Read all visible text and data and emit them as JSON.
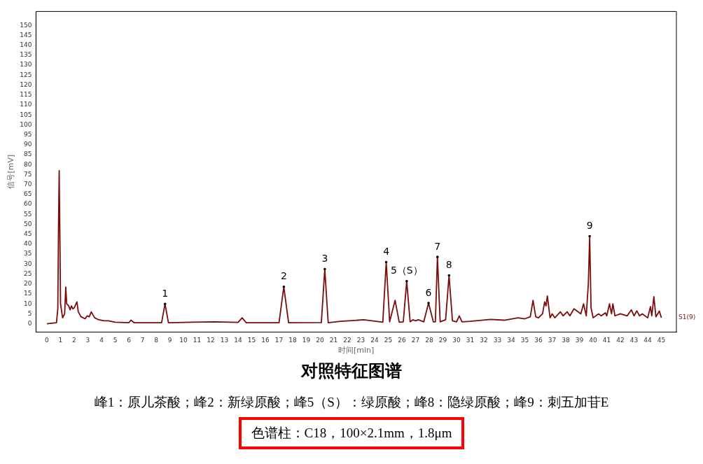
{
  "chart_data": {
    "type": "line",
    "title": "对照特征图谱",
    "xlabel": "时间[min]",
    "ylabel": "信号[mV]",
    "xlim": [
      -0.8,
      46.1
    ],
    "ylim": [
      -4,
      157
    ],
    "xticks": [
      0,
      1,
      2,
      3,
      4,
      5,
      6,
      7,
      8,
      9,
      10,
      11,
      12,
      13,
      14,
      15,
      16,
      17,
      18,
      19,
      20,
      21,
      22,
      23,
      24,
      25,
      26,
      27,
      28,
      29,
      30,
      31,
      32,
      33,
      34,
      35,
      36,
      37,
      38,
      39,
      40,
      41,
      42,
      43,
      44,
      45
    ],
    "yticks": [
      0,
      5,
      10,
      15,
      20,
      25,
      30,
      35,
      40,
      45,
      50,
      55,
      60,
      65,
      70,
      75,
      80,
      85,
      90,
      95,
      100,
      105,
      110,
      115,
      120,
      125,
      130,
      135,
      140,
      145,
      150
    ],
    "grid": false,
    "legend": false,
    "marker": "none",
    "line_style": "solid",
    "series": [
      {
        "name": "S1(9)",
        "color": "#7b0c0c",
        "x": [
          0,
          0.7,
          0.8,
          0.85,
          0.9,
          0.95,
          1.0,
          1.15,
          1.3,
          1.38,
          1.45,
          1.6,
          1.7,
          1.8,
          1.9,
          2.0,
          2.2,
          2.3,
          2.5,
          2.8,
          2.95,
          3.1,
          3.25,
          3.5,
          3.8,
          4.2,
          4.5,
          5,
          6,
          6.15,
          6.4,
          8.4,
          8.65,
          8.9,
          10.6,
          12.3,
          14.0,
          14.3,
          14.6,
          17.0,
          17.35,
          17.7,
          20.1,
          20.35,
          20.6,
          21.5,
          23.2,
          24.6,
          24.85,
          25.1,
          25.5,
          25.8,
          26.1,
          26.35,
          26.6,
          26.8,
          27.0,
          27.2,
          27.6,
          27.95,
          28.3,
          28.45,
          28.6,
          28.8,
          29.2,
          29.45,
          29.7,
          30.0,
          30.2,
          30.4,
          31,
          32.5,
          33.5,
          34.5,
          35.0,
          35.4,
          35.6,
          35.8,
          36.0,
          36.3,
          36.45,
          36.55,
          36.65,
          36.85,
          37.0,
          37.2,
          37.6,
          37.8,
          38.1,
          38.3,
          38.6,
          38.9,
          39.1,
          39.3,
          39.5,
          39.65,
          39.75,
          39.85,
          40.0,
          40.4,
          40.6,
          40.9,
          41.0,
          41.2,
          41.35,
          41.45,
          41.6,
          42.0,
          42.5,
          42.8,
          43.0,
          43.2,
          43.4,
          43.6,
          44.0,
          44.2,
          44.3,
          44.45,
          44.6,
          44.85,
          45
        ],
        "values": [
          0,
          0.5,
          7.5,
          48,
          77,
          45,
          10,
          3,
          5,
          18.5,
          10,
          9,
          7,
          9,
          7.5,
          8,
          11,
          6,
          3.5,
          2.5,
          4,
          3.5,
          6,
          3,
          2,
          1.5,
          1.5,
          0.8,
          0.5,
          1.8,
          0.5,
          0.5,
          10,
          0.5,
          0.8,
          1,
          0.7,
          3,
          0.5,
          0.5,
          18.6,
          0.5,
          0.6,
          27.5,
          0.5,
          1.2,
          2,
          0.8,
          31,
          1,
          11.8,
          0.8,
          1,
          21.4,
          1,
          2,
          1.5,
          2,
          1,
          10.4,
          1,
          1,
          33.6,
          1,
          2,
          24.3,
          1.5,
          1,
          4,
          1,
          1.2,
          2.2,
          1.8,
          3,
          2.5,
          3.5,
          11.8,
          3.5,
          3,
          5,
          11,
          9,
          14,
          3,
          5,
          3,
          6,
          4,
          6,
          4,
          7.5,
          6,
          5,
          10,
          4,
          20,
          44,
          8,
          3,
          5,
          4,
          5.5,
          4,
          10,
          5,
          10,
          4,
          5,
          4,
          7,
          4,
          6.5,
          4,
          5,
          3,
          8.6,
          4,
          13.6,
          3.5,
          6.4,
          3
        ]
      }
    ],
    "annotations": [
      {
        "text": "1",
        "x": 8.65,
        "y": 10
      },
      {
        "text": "2",
        "x": 17.35,
        "y": 18.6
      },
      {
        "text": "3",
        "x": 20.35,
        "y": 27.5
      },
      {
        "text": "4",
        "x": 24.85,
        "y": 31
      },
      {
        "text": "5（S）",
        "x": 26.35,
        "y": 21.4
      },
      {
        "text": "6",
        "x": 27.95,
        "y": 10.4
      },
      {
        "text": "7",
        "x": 28.6,
        "y": 33.6
      },
      {
        "text": "8",
        "x": 29.45,
        "y": 24.3
      },
      {
        "text": "9",
        "x": 39.75,
        "y": 44
      },
      "峰1：原儿茶酸；峰2：新绿原酸；峰5（S）：绿原酸；峰8：隐绿原酸；峰9：刺五加苷E",
      "色谱柱：C18，100×2.1mm，1.8μm"
    ]
  }
}
